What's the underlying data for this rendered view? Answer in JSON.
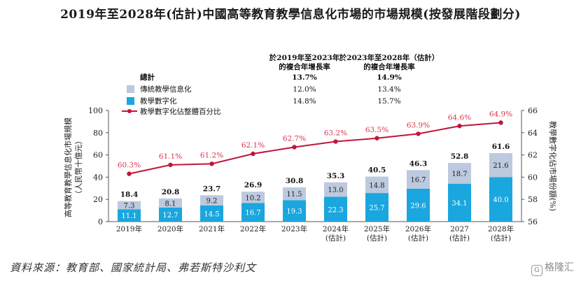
{
  "title": "2019年至2028年(估計)中國高等教育教學信息化市場的市場規模(按發展階段劃分)",
  "source": "資料來源：教育部、國家統計局、弗若斯特沙利文",
  "watermark": "格隆汇",
  "cagr_table": {
    "col1_header_line1": "於2019年至2023年",
    "col1_header_line2": "的複合年增長率",
    "col2_header_line1": "於2023年至2028年（估計）",
    "col2_header_line2": "的複合年增長率",
    "rows": [
      {
        "label": "總計",
        "c1": "13.7%",
        "c2": "14.9%"
      },
      {
        "label": "傳統教學信息化",
        "c1": "12.0%",
        "c2": "13.4%"
      },
      {
        "label": "教學數字化",
        "c1": "14.8%",
        "c2": "15.7%"
      },
      {
        "label": "教學數字化佔整體百分比",
        "c1": "",
        "c2": ""
      }
    ]
  },
  "colors": {
    "traditional": "#bcc9de",
    "digital": "#1aa6de",
    "line": "#c0163a",
    "line_label": "#d9344f"
  },
  "chart_data": {
    "type": "bar",
    "stacked": true,
    "categories": [
      {
        "line1": "2019年",
        "line2": ""
      },
      {
        "line1": "2020年",
        "line2": ""
      },
      {
        "line1": "2021年",
        "line2": ""
      },
      {
        "line1": "2022年",
        "line2": ""
      },
      {
        "line1": "2023年",
        "line2": ""
      },
      {
        "line1": "2024年",
        "line2": "(估計)"
      },
      {
        "line1": "2025年",
        "line2": "(估計)"
      },
      {
        "line1": "2026年",
        "line2": "(估計)"
      },
      {
        "line1": "2027",
        "line2": "(估計)"
      },
      {
        "line1": "2028年",
        "line2": "(估計)"
      }
    ],
    "series": [
      {
        "name": "教學數字化",
        "values": [
          11.1,
          12.7,
          14.5,
          16.7,
          19.3,
          22.3,
          25.7,
          29.6,
          34.1,
          40.0
        ],
        "labels": [
          "11.1",
          "12.7",
          "14.5",
          "16.7",
          "19.3",
          "22.3",
          "25.7",
          "29.6",
          "34.1",
          "40.0"
        ]
      },
      {
        "name": "傳統教學信息化",
        "values": [
          7.3,
          8.1,
          9.2,
          10.2,
          11.5,
          13.0,
          14.8,
          16.7,
          18.7,
          21.6
        ],
        "labels": [
          "7.3",
          "8.1",
          "9.2",
          "10.2",
          "11.5",
          "13.0",
          "14.8",
          "16.7",
          "18.7",
          "21.6"
        ]
      }
    ],
    "totals": [
      18.4,
      20.8,
      23.7,
      26.9,
      30.8,
      35.3,
      40.5,
      46.3,
      52.8,
      61.6
    ],
    "total_labels": [
      "18.4",
      "20.8",
      "23.7",
      "26.9",
      "30.8",
      "35.3",
      "40.5",
      "46.3",
      "52.8",
      "61.6"
    ],
    "line_series": {
      "name": "教學數字化佔整體百分比",
      "values": [
        60.3,
        61.1,
        61.2,
        62.1,
        62.7,
        63.2,
        63.5,
        63.9,
        64.6,
        64.9
      ],
      "labels": [
        "60.3%",
        "61.1%",
        "61.2%",
        "62.1%",
        "62.7%",
        "63.2%",
        "63.5%",
        "63.9%",
        "64.6%",
        "64.9%"
      ]
    },
    "ylabel": "高等教育教學信息化市場規模（人民幣十億元）",
    "ylabel_line1": "高等教育教學信息化市場規模",
    "ylabel_line2": "（人民幣十億元）",
    "y2label": "教學數字化佔市場份額(%)",
    "ylim": [
      0,
      100
    ],
    "yticks": [
      "0",
      "20",
      "40",
      "60",
      "80",
      "100"
    ],
    "y2lim": [
      56,
      66
    ],
    "y2ticks": [
      "56",
      "58",
      "60",
      "62",
      "64",
      "66"
    ]
  }
}
